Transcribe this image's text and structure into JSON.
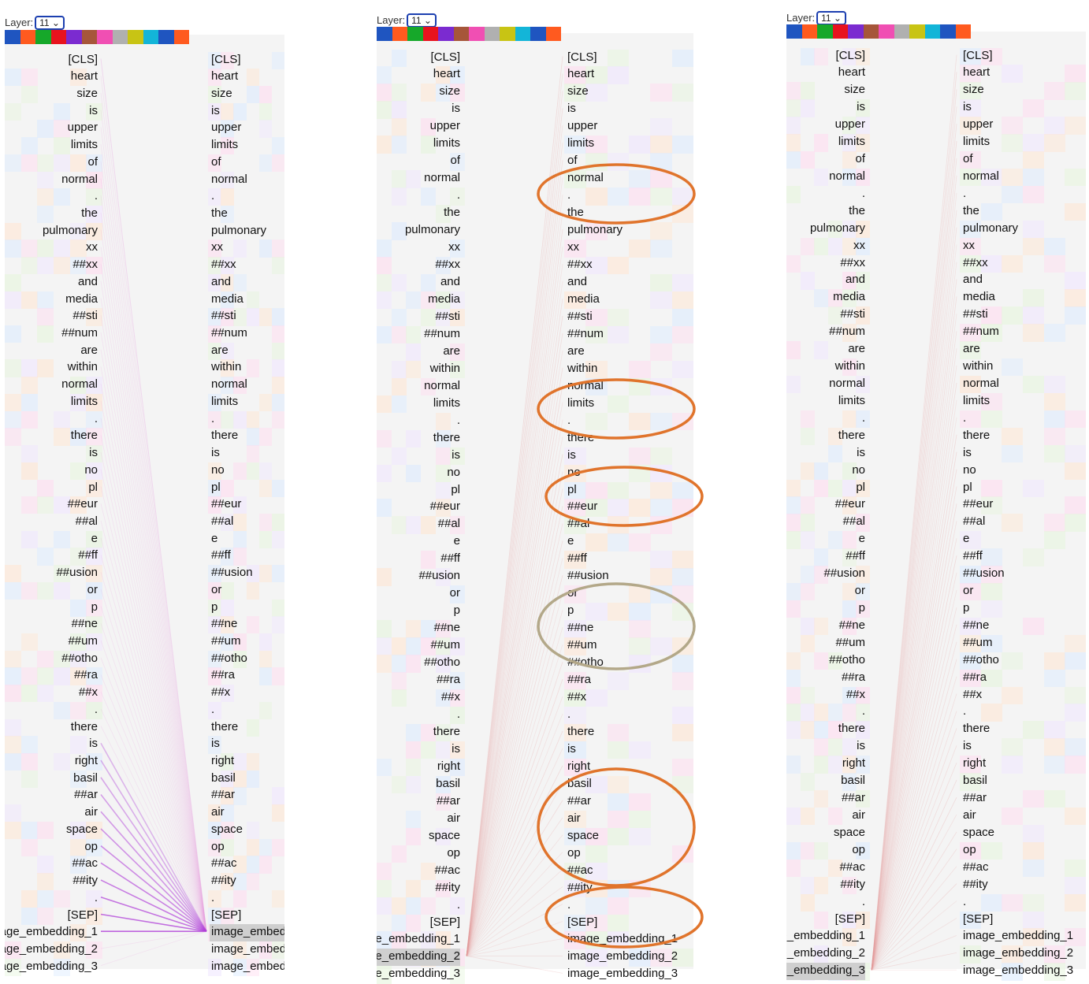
{
  "layer_label": "Layer:",
  "layer_value": "11",
  "head_colors": [
    "#1f55c0",
    "#ff5a1f",
    "#16a82a",
    "#e8131e",
    "#7b2bd0",
    "#a6563a",
    "#f04fb3",
    "#b0b0b0",
    "#c8c414",
    "#13b5d8",
    "#1f55c0",
    "#ff5a1f"
  ],
  "tokens": [
    "[CLS]",
    "heart",
    "size",
    "is",
    "upper",
    "limits",
    "of",
    "normal",
    ".",
    "the",
    "pulmonary",
    "xx",
    "##xx",
    "and",
    "media",
    "##sti",
    "##num",
    "are",
    "within",
    "normal",
    "limits",
    ".",
    "there",
    "is",
    "no",
    "pl",
    "##eur",
    "##al",
    "e",
    "##ff",
    "##usion",
    "or",
    "p",
    "##ne",
    "##um",
    "##otho",
    "##ra",
    "##x",
    ".",
    "there",
    "is",
    "right",
    "basil",
    "##ar",
    "air",
    "space",
    "op",
    "##ac",
    "##ity",
    ".",
    "[SEP]",
    "image_embedding_1",
    "image_embedding_2",
    "image_embedding_3"
  ],
  "panels": [
    {
      "selected_side": "right",
      "selected_index": 51
    },
    {
      "selected_side": "left",
      "selected_index": 52
    },
    {
      "selected_side": "left",
      "selected_index": 53
    }
  ],
  "annotation_colors": {
    "orange": "#e0742c",
    "tan": "#b3a889"
  }
}
